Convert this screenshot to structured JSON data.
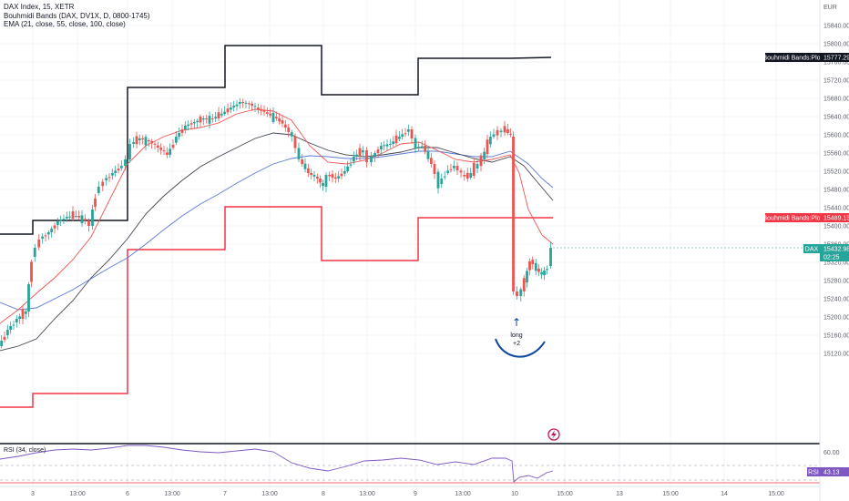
{
  "header": {
    "symbol_line": "DAX Index, 15, XETR",
    "indicator_line": "Bouhmidi Bands (DAX, DV1X, D, 0800-1745)",
    "ema_line": "EMA (21, close, 55, close, 100, close)"
  },
  "price_axis": {
    "currency": "EUR",
    "ticks": [
      "15840.00",
      "15800.00",
      "15760.00",
      "15720.00",
      "15680.00",
      "15640.00",
      "15600.00",
      "15560.00",
      "15520.00",
      "15480.00",
      "15440.00",
      "15400.00",
      "15360.00",
      "15320.00",
      "15280.00",
      "15240.00",
      "15200.00",
      "15160.00",
      "15120.00"
    ]
  },
  "time_axis": {
    "labels": [
      "3",
      "13:00",
      "6",
      "13:00",
      "7",
      "13:00",
      "8",
      "13:00",
      "9",
      "13:00",
      "10",
      "15:00",
      "13",
      "15:00",
      "14",
      "15:00"
    ]
  },
  "price_tags": {
    "upper_band": {
      "label": "Bouhmidi Bands:Plot",
      "value": "15777.29",
      "color": "#131722"
    },
    "lower_band": {
      "label": "Bouhmidi Bands:Plot",
      "value": "15489.13",
      "color": "#f23645"
    },
    "last_price": {
      "label": "DAX",
      "value": "15432.98",
      "countdown": "02:25",
      "color": "#26a69a"
    }
  },
  "annotation": {
    "arrow": "↑",
    "text_line1": "long",
    "text_line2": "+2",
    "color": "#0d47a1"
  },
  "rsi_pane": {
    "label": "RSI (34, close)",
    "ticks": [
      "60.00",
      "40.00"
    ],
    "tag_label": "RSI",
    "tag_value": "43.13",
    "color": "#7e57c2"
  },
  "colors": {
    "up": "#26a69a",
    "down": "#ef5350",
    "upper_band": "#131722",
    "lower_band": "#f23645",
    "ema21": "#ef5350",
    "ema55": "#434651",
    "ema100": "#5b7bd6",
    "rsi": "#7e57c2"
  }
}
